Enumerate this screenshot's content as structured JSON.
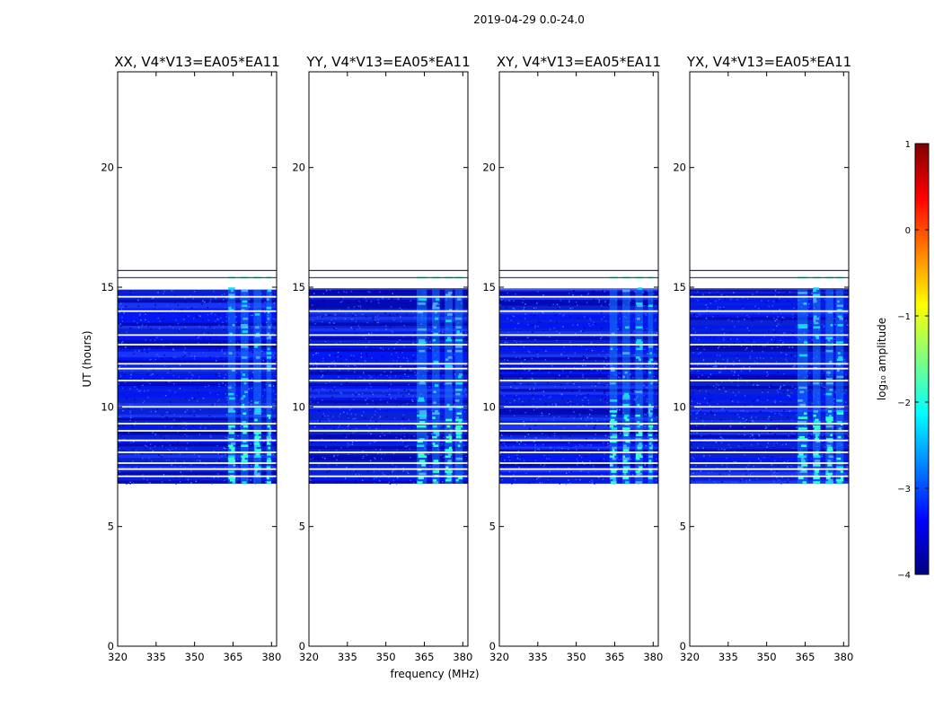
{
  "figure": {
    "suptitle": "2019-04-29 0.0-24.0"
  },
  "chart_data": {
    "type": "heatmap",
    "panels": [
      {
        "title": "XX, V4*V13=EA05*EA11",
        "polarization": "XX",
        "bright_channels_mhz": [
          [
            363,
            366
          ],
          [
            368,
            371
          ],
          [
            373,
            376
          ],
          [
            378,
            380
          ]
        ]
      },
      {
        "title": "YY, V4*V13=EA05*EA11",
        "polarization": "YY",
        "bright_channels_mhz": [
          [
            362,
            366
          ],
          [
            368,
            371
          ],
          [
            373,
            376
          ],
          [
            377,
            380
          ]
        ]
      },
      {
        "title": "XY, V4*V13=EA05*EA11",
        "polarization": "XY",
        "bright_channels_mhz": [
          [
            363,
            366
          ],
          [
            368,
            371
          ],
          [
            373,
            376
          ],
          [
            378,
            380
          ]
        ]
      },
      {
        "title": "YX, V4*V13=EA05*EA11",
        "polarization": "YX",
        "bright_channels_mhz": [
          [
            362,
            366
          ],
          [
            368,
            371
          ],
          [
            373,
            376
          ],
          [
            377,
            380
          ]
        ]
      }
    ],
    "xlabel": "frequency (MHz)",
    "ylabel": "UT (hours)",
    "xlim": [
      320,
      382
    ],
    "ylim": [
      0,
      24
    ],
    "xticks": [
      320,
      335,
      350,
      365,
      380
    ],
    "yticks": [
      0,
      5,
      10,
      15,
      20
    ],
    "data_time_range_hours": [
      6.8,
      14.9
    ],
    "late_sparse_rows_hours": [
      15.4,
      15.7
    ],
    "flagged_gap_hours": [
      7.1,
      7.4,
      7.65,
      8.1,
      8.6,
      9.0,
      9.3,
      10.0,
      11.1,
      11.6,
      11.8,
      12.6,
      13.0,
      14.0,
      14.6
    ],
    "colorbar": {
      "label": "log₁₀ amplitude",
      "range": [
        -4,
        1
      ],
      "ticks": [
        -4,
        -3,
        -2,
        -1,
        0,
        1
      ],
      "tick_labels": [
        "−4",
        "−3",
        "−2",
        "−1",
        "0",
        "1"
      ],
      "colormap": "jet",
      "colors": [
        "#00007f",
        "#0000ff",
        "#0080ff",
        "#00ffff",
        "#80ff80",
        "#ffff00",
        "#ff8000",
        "#ff0000",
        "#7f0000"
      ]
    }
  }
}
